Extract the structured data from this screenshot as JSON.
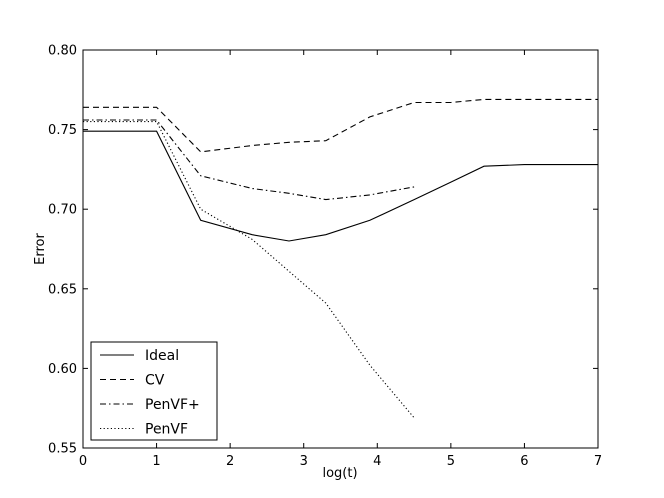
{
  "chart_data": {
    "type": "line",
    "xlabel": "log(t)",
    "ylabel": "Error",
    "xlim": [
      0,
      7
    ],
    "ylim": [
      0.55,
      0.8
    ],
    "xticks": [
      "0",
      "1",
      "2",
      "3",
      "4",
      "5",
      "6",
      "7"
    ],
    "yticks": [
      "0.55",
      "0.60",
      "0.65",
      "0.70",
      "0.75",
      "0.80"
    ],
    "grid": false,
    "legend_position": "lower-left",
    "series": [
      {
        "name": "Ideal",
        "style": "solid",
        "x": [
          0,
          1,
          1.6,
          2.3,
          2.8,
          3.3,
          3.9,
          4.5,
          5.0,
          5.45,
          6.0,
          7.0
        ],
        "y": [
          0.749,
          0.749,
          0.693,
          0.684,
          0.68,
          0.684,
          0.693,
          0.706,
          0.717,
          0.727,
          0.728,
          0.728
        ]
      },
      {
        "name": "CV",
        "style": "dashed",
        "x": [
          0,
          1,
          1.6,
          2.3,
          2.8,
          3.3,
          3.9,
          4.5,
          5.0,
          5.45,
          6.0,
          7.0
        ],
        "y": [
          0.764,
          0.764,
          0.736,
          0.74,
          0.742,
          0.743,
          0.758,
          0.767,
          0.767,
          0.769,
          0.769,
          0.769
        ]
      },
      {
        "name": "PenVF+",
        "style": "dashdot",
        "x": [
          0,
          1,
          1.6,
          2.3,
          2.8,
          3.3,
          3.9,
          4.5
        ],
        "y": [
          0.756,
          0.756,
          0.721,
          0.713,
          0.71,
          0.706,
          0.709,
          0.714
        ]
      },
      {
        "name": "PenVF",
        "style": "dotted",
        "x": [
          0,
          1,
          1.6,
          2.3,
          2.8,
          3.3,
          3.9,
          4.5
        ],
        "y": [
          0.755,
          0.755,
          0.7,
          0.681,
          0.661,
          0.641,
          0.602,
          0.569
        ]
      }
    ]
  }
}
